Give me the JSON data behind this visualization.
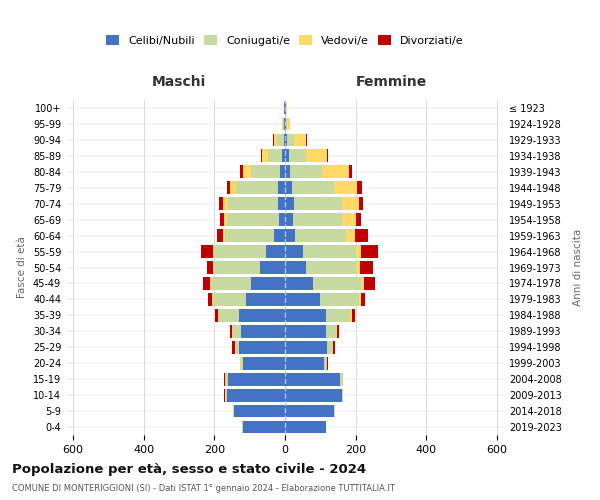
{
  "age_groups": [
    "0-4",
    "5-9",
    "10-14",
    "15-19",
    "20-24",
    "25-29",
    "30-34",
    "35-39",
    "40-44",
    "45-49",
    "50-54",
    "55-59",
    "60-64",
    "65-69",
    "70-74",
    "75-79",
    "80-84",
    "85-89",
    "90-94",
    "95-99",
    "100+"
  ],
  "birth_years": [
    "2019-2023",
    "2014-2018",
    "2009-2013",
    "2004-2008",
    "1999-2003",
    "1994-1998",
    "1989-1993",
    "1984-1988",
    "1979-1983",
    "1974-1978",
    "1969-1973",
    "1964-1968",
    "1959-1963",
    "1954-1958",
    "1949-1953",
    "1944-1948",
    "1939-1943",
    "1934-1938",
    "1929-1933",
    "1924-1928",
    "≤ 1923"
  ],
  "maschi": {
    "celibi": [
      120,
      145,
      165,
      160,
      120,
      130,
      125,
      130,
      110,
      95,
      70,
      55,
      30,
      18,
      20,
      20,
      15,
      8,
      4,
      2,
      2
    ],
    "coniugati": [
      1,
      2,
      5,
      10,
      5,
      10,
      25,
      60,
      95,
      115,
      130,
      145,
      140,
      145,
      140,
      120,
      80,
      40,
      18,
      5,
      2
    ],
    "vedovi": [
      0,
      0,
      1,
      1,
      1,
      1,
      1,
      1,
      1,
      2,
      3,
      3,
      5,
      10,
      15,
      15,
      25,
      18,
      10,
      2,
      0
    ],
    "divorziati": [
      0,
      0,
      1,
      2,
      2,
      8,
      5,
      8,
      12,
      20,
      18,
      35,
      18,
      12,
      12,
      8,
      8,
      3,
      2,
      0,
      0
    ]
  },
  "femmine": {
    "nubili": [
      115,
      140,
      160,
      155,
      110,
      120,
      115,
      115,
      100,
      80,
      60,
      50,
      28,
      22,
      25,
      20,
      15,
      10,
      5,
      2,
      2
    ],
    "coniugate": [
      1,
      2,
      5,
      8,
      8,
      15,
      30,
      70,
      110,
      135,
      140,
      150,
      145,
      140,
      135,
      120,
      90,
      50,
      20,
      5,
      2
    ],
    "vedove": [
      0,
      0,
      0,
      1,
      1,
      2,
      2,
      5,
      5,
      10,
      12,
      15,
      25,
      40,
      50,
      65,
      75,
      60,
      35,
      8,
      2
    ],
    "divorziate": [
      0,
      0,
      0,
      1,
      2,
      5,
      5,
      8,
      12,
      30,
      38,
      48,
      38,
      12,
      12,
      12,
      10,
      3,
      2,
      0,
      0
    ]
  },
  "colors": {
    "celibi": "#4472c4",
    "coniugati": "#c5d9a0",
    "vedovi": "#ffd966",
    "divorziati": "#c00000"
  },
  "xlim": 620,
  "title": "Popolazione per età, sesso e stato civile - 2024",
  "subtitle": "COMUNE DI MONTERIGGIONI (SI) - Dati ISTAT 1° gennaio 2024 - Elaborazione TUTTITALIA.IT",
  "ylabel_left": "Fasce di età",
  "ylabel_right": "Anni di nascita",
  "xlabel_maschi": "Maschi",
  "xlabel_femmine": "Femmine",
  "legend_labels": [
    "Celibi/Nubili",
    "Coniugati/e",
    "Vedovi/e",
    "Divorziati/e"
  ],
  "bg_color": "#ffffff",
  "grid_color": "#cccccc"
}
